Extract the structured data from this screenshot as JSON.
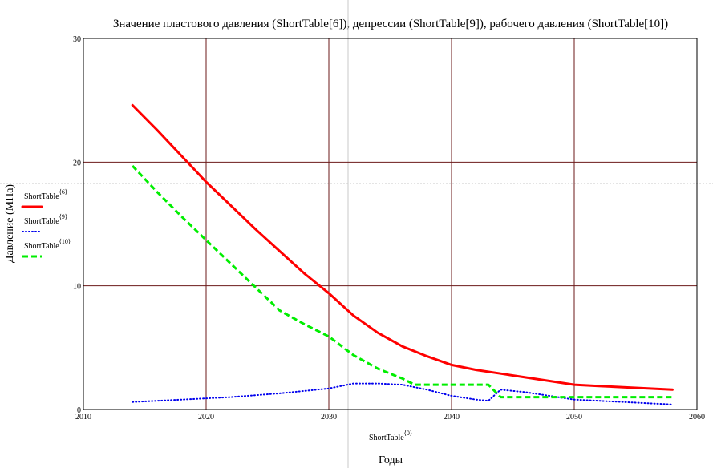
{
  "chart_data": {
    "type": "line",
    "title": "Значение пластового давления (ShortTable[6]), депрессии (ShortTable[9]), рабочего давления (ShortTable[10])",
    "xlabel": "Годы",
    "xlabel_expr": "ShortTable",
    "xlabel_expr_sup": "⟨0⟩",
    "ylabel": "Давление (МПа)",
    "xlim": [
      2010,
      2060
    ],
    "ylim": [
      0,
      30
    ],
    "x_ticks": [
      "2010",
      "2020",
      "2030",
      "2040",
      "2050",
      "2060"
    ],
    "y_ticks": [
      "0",
      "10",
      "20",
      "30"
    ],
    "grid": true,
    "grid_color": "#6b1a1a",
    "legend_position": "left",
    "series": [
      {
        "name": "ShortTable",
        "sup": "⟨6⟩",
        "color": "#ff0000",
        "style": "solid",
        "x": [
          2014,
          2016,
          2018,
          2020,
          2022,
          2024,
          2026,
          2028,
          2030,
          2032,
          2034,
          2036,
          2038,
          2040,
          2042,
          2044,
          2046,
          2048,
          2050,
          2052,
          2054,
          2056,
          2058
        ],
        "y": [
          24.6,
          22.6,
          20.5,
          18.4,
          16.5,
          14.6,
          12.8,
          11.0,
          9.4,
          7.6,
          6.2,
          5.1,
          4.3,
          3.6,
          3.2,
          2.9,
          2.6,
          2.3,
          2.0,
          1.9,
          1.8,
          1.7,
          1.6
        ]
      },
      {
        "name": "ShortTable",
        "sup": "⟨9⟩",
        "color": "#0000ee",
        "style": "dotted",
        "x": [
          2014,
          2018,
          2022,
          2026,
          2028,
          2030,
          2032,
          2034,
          2036,
          2038,
          2040,
          2042,
          2043,
          2044,
          2046,
          2048,
          2050,
          2054,
          2058
        ],
        "y": [
          0.6,
          0.8,
          1.0,
          1.3,
          1.5,
          1.7,
          2.1,
          2.1,
          2.0,
          1.6,
          1.1,
          0.8,
          0.7,
          1.6,
          1.4,
          1.1,
          0.8,
          0.6,
          0.4
        ]
      },
      {
        "name": "ShortTable",
        "sup": "⟨10⟩",
        "color": "#00ee00",
        "style": "dashed",
        "x": [
          2014,
          2016,
          2018,
          2020,
          2022,
          2024,
          2026,
          2028,
          2030,
          2032,
          2034,
          2036,
          2037,
          2040,
          2043,
          2044,
          2048,
          2052,
          2058
        ],
        "y": [
          19.7,
          17.6,
          15.6,
          13.7,
          11.8,
          9.9,
          8.0,
          6.9,
          5.9,
          4.4,
          3.3,
          2.5,
          2.0,
          2.0,
          2.0,
          1.0,
          1.0,
          1.0,
          1.0
        ]
      }
    ]
  }
}
